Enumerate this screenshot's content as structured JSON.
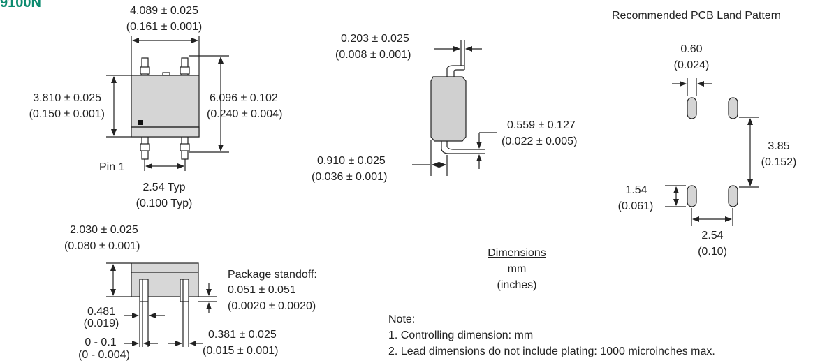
{
  "corner_text": "9100N",
  "top_view": {
    "width_mm": "4.089 ± 0.025",
    "width_in": "(0.161 ± 0.001)",
    "height_mm": "3.810 ± 0.025",
    "height_in": "(0.150 ± 0.001)",
    "overall_mm": "6.096 ± 0.102",
    "overall_in": "(0.240 ± 0.004)",
    "pin1": "Pin 1",
    "pitch_mm": "2.54 Typ",
    "pitch_in": "(0.100 Typ)"
  },
  "side_view": {
    "lead_thk_mm": "0.203 ± 0.025",
    "lead_thk_in": "(0.008 ± 0.001)",
    "lead_h_mm": "0.559 ± 0.127",
    "lead_h_in": "(0.022 ± 0.005)",
    "foot_mm": "0.910 ± 0.025",
    "foot_in": "(0.036 ± 0.001)"
  },
  "front_view": {
    "body_h_mm": "2.030 ± 0.025",
    "body_h_in": "(0.080 ± 0.001)",
    "standoff_title": "Package standoff:",
    "standoff_mm": "0.051 ± 0.051",
    "standoff_in": "(0.0020 ± 0.0020)",
    "lead_w_mm": "0.481",
    "lead_w_in": "(0.019)",
    "gap_mm": "0 - 0.1",
    "gap_in": "(0 - 0.004)",
    "lead_narrow_mm": "0.381 ± 0.025",
    "lead_narrow_in": "(0.015 ± 0.001)"
  },
  "legend": {
    "title": "Dimensions",
    "unit1": "mm",
    "unit2": "(inches)"
  },
  "notes": {
    "title": "Note:",
    "items": [
      "1. Controlling dimension: mm",
      "2. Lead dimensions do not include plating: 1000 microinches max."
    ]
  },
  "land_pattern": {
    "title": "Recommended PCB Land Pattern",
    "pad_w_mm": "0.60",
    "pad_w_in": "(0.024)",
    "row_gap_mm": "3.85",
    "row_gap_in": "(0.152)",
    "pad_len_mm": "1.54",
    "pad_len_in": "(0.061)",
    "pitch_mm": "2.54",
    "pitch_in": "(0.10)"
  }
}
